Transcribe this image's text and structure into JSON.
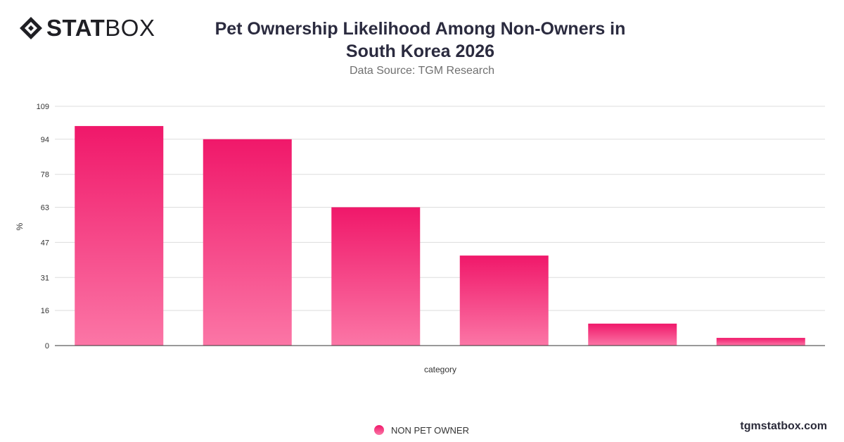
{
  "brand": {
    "logo_text_bold": "STAT",
    "logo_text_light": "BOX",
    "footer": "tgmstatbox.com"
  },
  "header": {
    "title": "Pet Ownership Likelihood Among Non-Owners in South Korea 2026",
    "subtitle": "Data Source: TGM Research"
  },
  "colors": {
    "bar_top": "#f0186a",
    "bar_bottom": "#fb76a6",
    "grid": "#dddddd",
    "axis": "#333333"
  },
  "chart_data": {
    "type": "bar",
    "title": "Pet Ownership Likelihood Among Non-Owners in South Korea 2026",
    "subtitle": "Data Source: TGM Research",
    "xlabel": "category",
    "ylabel": "%",
    "ylim": [
      0,
      109
    ],
    "yticks": [
      0,
      16,
      31,
      47,
      63,
      78,
      94,
      109
    ],
    "grid": true,
    "legend": "bottom-center",
    "categories": [
      "",
      "",
      "",
      "",
      "",
      ""
    ],
    "series": [
      {
        "name": "NON PET OWNER",
        "values": [
          100,
          94,
          63,
          41,
          10,
          3.5
        ]
      }
    ]
  }
}
